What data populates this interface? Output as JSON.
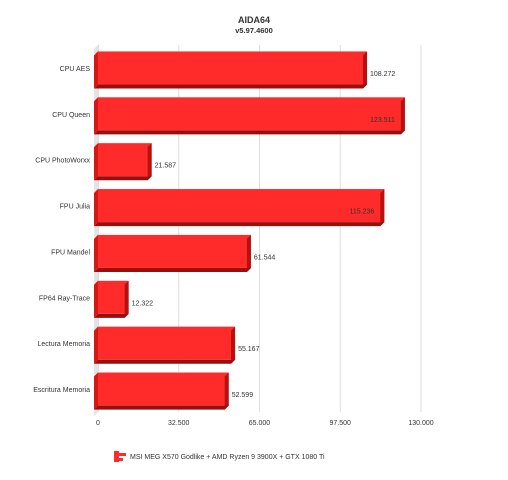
{
  "chart_data": {
    "type": "bar",
    "orientation": "horizontal",
    "title": "AIDA64",
    "subtitle": "v5.97.4600",
    "categories": [
      "CPU AES",
      "CPU Queen",
      "CPU PhotoWorxx",
      "FPU Julia",
      "FPU Mandel",
      "FP64 Ray-Trace",
      "Lectura Memoria",
      "Escritura Memoria"
    ],
    "series": [
      {
        "name": "MSI MEG X570 Godlike + AMD Ryzen 9 3900X + GTX 1080 Ti",
        "values": [
          108.272,
          123.511,
          21.587,
          115.236,
          61.544,
          12.322,
          55.167,
          52.599
        ],
        "value_labels": [
          "108.272",
          "123.511",
          "21.587",
          "115.236",
          "61.544",
          "12.322",
          "55.167",
          "52.599"
        ],
        "color": "#ff2a2a"
      }
    ],
    "xlim": [
      0,
      130
    ],
    "ticks": [
      0,
      32.5,
      65,
      97.5,
      130
    ],
    "tick_labels": [
      "0",
      "32.500",
      "65.000",
      "97.500",
      "130.000"
    ],
    "grid": true,
    "legend_position": "bottom-left"
  }
}
